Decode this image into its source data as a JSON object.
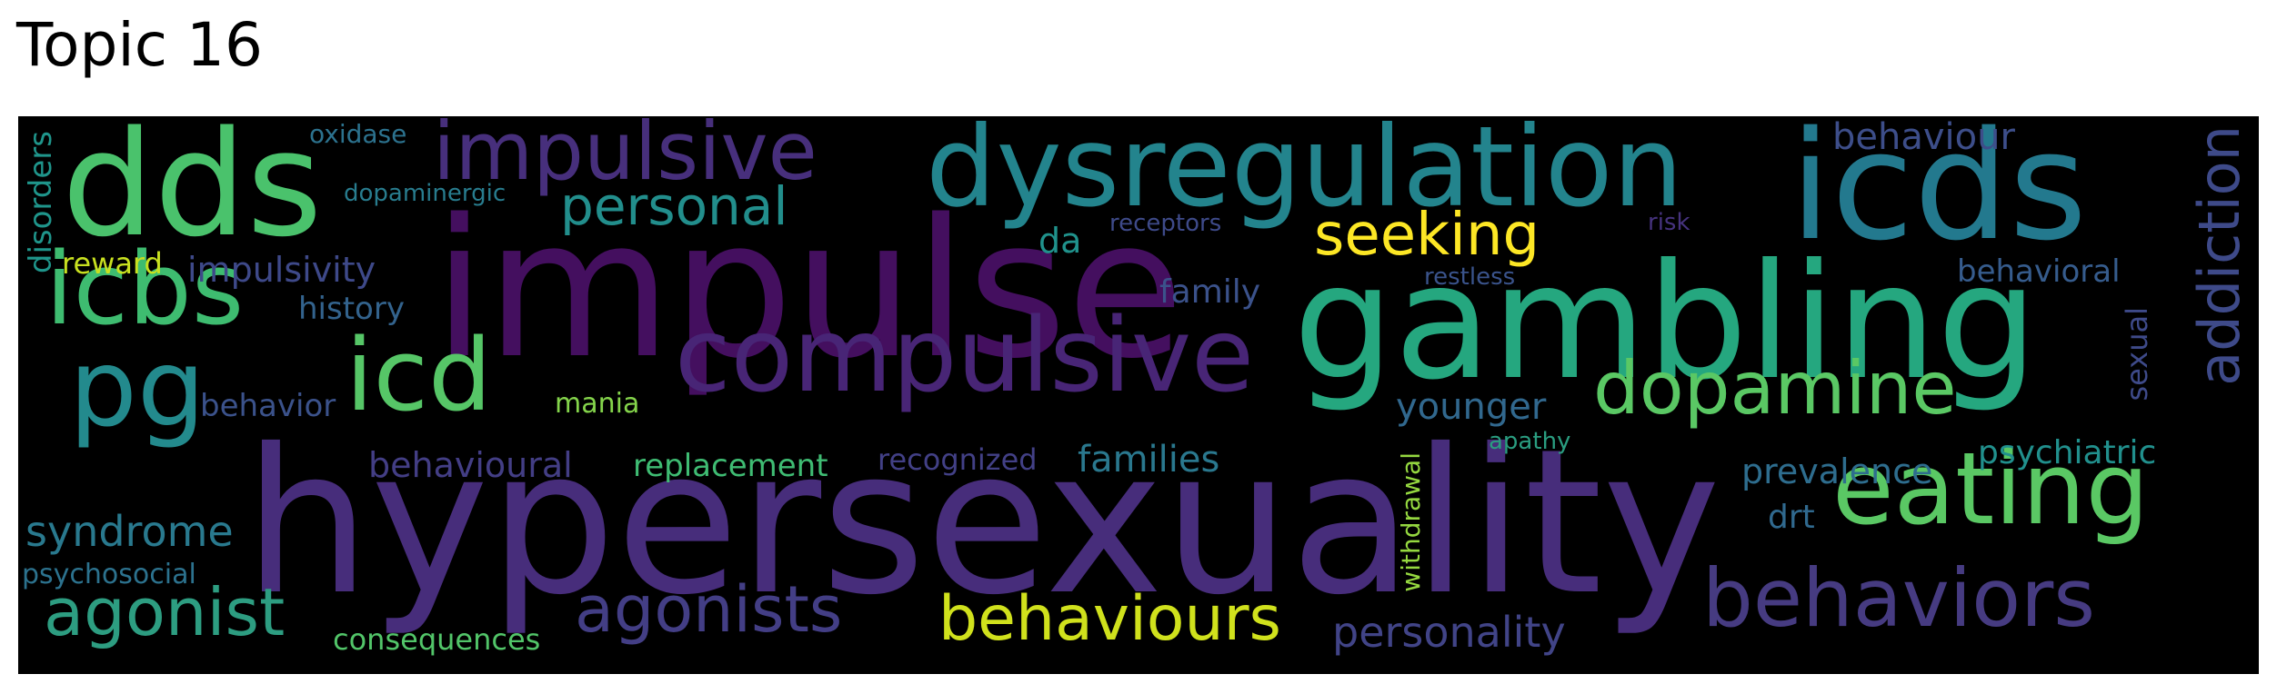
{
  "title": "Topic 16",
  "words": [
    {
      "text": "hypersexuality",
      "color": "#472d7b"
    },
    {
      "text": "impulse",
      "color": "#440f5f"
    },
    {
      "text": "gambling",
      "color": "#25a77f"
    },
    {
      "text": "icds",
      "color": "#23798e"
    },
    {
      "text": "dds",
      "color": "#4ac26c"
    },
    {
      "text": "dysregulation",
      "color": "#23848d"
    },
    {
      "text": "compulsive",
      "color": "#482576"
    },
    {
      "text": "icbs",
      "color": "#3ebc70"
    },
    {
      "text": "eating",
      "color": "#5ac864"
    },
    {
      "text": "behaviors",
      "color": "#463b81"
    },
    {
      "text": "impulsive",
      "color": "#472f7c"
    },
    {
      "text": "pg",
      "color": "#238a8d"
    },
    {
      "text": "icd",
      "color": "#56c667"
    },
    {
      "text": "dopamine",
      "color": "#5ac864"
    },
    {
      "text": "behaviours",
      "color": "#d0e11c"
    },
    {
      "text": "agonists",
      "color": "#433e85"
    },
    {
      "text": "agonist",
      "color": "#2d9d81"
    },
    {
      "text": "seeking",
      "color": "#fde725"
    },
    {
      "text": "personal",
      "color": "#228e8c"
    },
    {
      "text": "addiction",
      "color": "#3e4a89"
    },
    {
      "text": "syndrome",
      "color": "#29798e"
    },
    {
      "text": "personality",
      "color": "#414487"
    },
    {
      "text": "families",
      "color": "#2a788e"
    },
    {
      "text": "replacement",
      "color": "#3fbc73"
    },
    {
      "text": "behavioural",
      "color": "#433e85"
    },
    {
      "text": "younger",
      "color": "#31688e"
    },
    {
      "text": "prevalence",
      "color": "#2e6d8e"
    },
    {
      "text": "psychiatric",
      "color": "#21908d"
    },
    {
      "text": "impulsivity",
      "color": "#3e4989"
    },
    {
      "text": "behavior",
      "color": "#3b528b"
    },
    {
      "text": "family",
      "color": "#3b528b"
    },
    {
      "text": "history",
      "color": "#33638d"
    },
    {
      "text": "behaviour",
      "color": "#3d4e8a"
    },
    {
      "text": "behavioral",
      "color": "#365c8d"
    },
    {
      "text": "consequences",
      "color": "#52c569"
    },
    {
      "text": "recognized",
      "color": "#424086"
    },
    {
      "text": "drt",
      "color": "#30698e"
    },
    {
      "text": "reward",
      "color": "#c8e020"
    },
    {
      "text": "da",
      "color": "#20928c"
    },
    {
      "text": "mania",
      "color": "#84d44b"
    },
    {
      "text": "psychosocial",
      "color": "#2c728e"
    },
    {
      "text": "disorders",
      "color": "#1f958b"
    },
    {
      "text": "sexual",
      "color": "#3e4a89"
    },
    {
      "text": "withdrawal",
      "color": "#95d840"
    },
    {
      "text": "dopaminergic",
      "color": "#287c8e"
    },
    {
      "text": "oxidase",
      "color": "#2c728e"
    },
    {
      "text": "receptors",
      "color": "#3e4a89"
    },
    {
      "text": "risk",
      "color": "#46337e"
    },
    {
      "text": "restless",
      "color": "#3a538b"
    },
    {
      "text": "apathy",
      "color": "#2a9d80"
    }
  ]
}
